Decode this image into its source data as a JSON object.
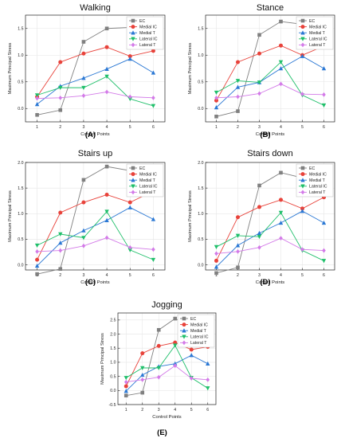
{
  "legend_series": [
    "EC",
    "Medial IC",
    "Medial T",
    "Lateral IC",
    "Lateral T"
  ],
  "series_colors": [
    "#808080",
    "#e8423a",
    "#2b78d4",
    "#1fbf6a",
    "#d37ae8"
  ],
  "series_markers": [
    "square",
    "circle",
    "triangle-up",
    "triangle-down",
    "diamond"
  ],
  "chart_data": [
    {
      "type": "line",
      "panel_label": "(A)",
      "title": "Walking",
      "xlabel": "Control Points",
      "ylabel": "Maximum Principal Stress",
      "x": [
        1,
        2,
        3,
        4,
        5,
        6
      ],
      "xlim": [
        0.5,
        6.5
      ],
      "ylim": [
        -0.25,
        1.75
      ],
      "yticks": [
        "0.0",
        "0.5",
        "1.0",
        "1.5"
      ],
      "xticks": [
        "1",
        "2",
        "3",
        "4",
        "5",
        "6"
      ],
      "legend_position": "top-right",
      "series": [
        {
          "name": "EC",
          "values": [
            -0.12,
            -0.03,
            1.25,
            1.5,
            1.52,
            1.15
          ]
        },
        {
          "name": "Medial IC",
          "values": [
            0.22,
            0.87,
            1.03,
            1.15,
            0.98,
            1.08
          ]
        },
        {
          "name": "Medial T",
          "values": [
            0.08,
            0.42,
            0.57,
            0.74,
            0.93,
            0.67
          ]
        },
        {
          "name": "Lateral IC",
          "values": [
            0.25,
            0.39,
            0.39,
            0.6,
            0.18,
            0.05
          ]
        },
        {
          "name": "Lateral T",
          "values": [
            0.19,
            0.2,
            0.24,
            0.31,
            0.22,
            0.2
          ]
        }
      ]
    },
    {
      "type": "line",
      "panel_label": "(B)",
      "title": "Stance",
      "xlabel": "Control Points",
      "ylabel": "Maximum Principal Stress",
      "x": [
        1,
        2,
        3,
        4,
        5,
        6
      ],
      "xlim": [
        0.5,
        6.5
      ],
      "ylim": [
        -0.25,
        1.75
      ],
      "yticks": [
        "0.0",
        "0.5",
        "1.0",
        "1.5"
      ],
      "xticks": [
        "1",
        "2",
        "3",
        "4",
        "5",
        "6"
      ],
      "legend_position": "top-right",
      "series": [
        {
          "name": "EC",
          "values": [
            -0.15,
            -0.05,
            1.38,
            1.63,
            1.58,
            1.2
          ]
        },
        {
          "name": "Medial IC",
          "values": [
            0.15,
            0.87,
            1.03,
            1.18,
            1.0,
            1.17
          ]
        },
        {
          "name": "Medial T",
          "values": [
            0.02,
            0.4,
            0.49,
            0.75,
            0.98,
            0.75
          ]
        },
        {
          "name": "Lateral IC",
          "values": [
            0.3,
            0.52,
            0.49,
            0.87,
            0.25,
            0.06
          ]
        },
        {
          "name": "Lateral T",
          "values": [
            0.2,
            0.22,
            0.28,
            0.46,
            0.27,
            0.26
          ]
        }
      ]
    },
    {
      "type": "line",
      "panel_label": "(C)",
      "title": "Stairs up",
      "xlabel": "Control Points",
      "ylabel": "Maximum Principal Stress",
      "x": [
        1,
        2,
        3,
        4,
        5,
        6
      ],
      "xlim": [
        0.5,
        6.5
      ],
      "ylim": [
        -0.1,
        2.0
      ],
      "yticks": [
        "0.0",
        "0.5",
        "1.0",
        "1.5",
        "2.0"
      ],
      "xticks": [
        "1",
        "2",
        "3",
        "4",
        "5",
        "6"
      ],
      "legend_position": "top-right",
      "series": [
        {
          "name": "EC",
          "values": [
            -0.18,
            -0.08,
            1.66,
            1.92,
            1.84,
            1.43
          ]
        },
        {
          "name": "Medial IC",
          "values": [
            0.1,
            1.02,
            1.22,
            1.37,
            1.22,
            1.44
          ]
        },
        {
          "name": "Medial T",
          "values": [
            -0.02,
            0.43,
            0.67,
            0.87,
            1.12,
            0.89
          ]
        },
        {
          "name": "Lateral IC",
          "values": [
            0.38,
            0.6,
            0.53,
            1.04,
            0.29,
            0.1
          ]
        },
        {
          "name": "Lateral T",
          "values": [
            0.26,
            0.28,
            0.37,
            0.53,
            0.34,
            0.3
          ]
        }
      ]
    },
    {
      "type": "line",
      "panel_label": "(D)",
      "title": "Stairs down",
      "xlabel": "Control Points",
      "ylabel": "Maximum Principal Stress",
      "x": [
        1,
        2,
        3,
        4,
        5,
        6
      ],
      "xlim": [
        0.5,
        6.5
      ],
      "ylim": [
        -0.1,
        2.0
      ],
      "yticks": [
        "0.0",
        "0.5",
        "1.0",
        "1.5",
        "2.0"
      ],
      "xticks": [
        "1",
        "2",
        "3",
        "4",
        "5",
        "6"
      ],
      "legend_position": "top-right",
      "series": [
        {
          "name": "EC",
          "values": [
            -0.16,
            -0.05,
            1.55,
            1.8,
            1.7,
            1.34
          ]
        },
        {
          "name": "Medial IC",
          "values": [
            0.08,
            0.93,
            1.13,
            1.27,
            1.1,
            1.32
          ]
        },
        {
          "name": "Medial T",
          "values": [
            -0.04,
            0.38,
            0.62,
            0.82,
            1.05,
            0.82
          ]
        },
        {
          "name": "Lateral IC",
          "values": [
            0.35,
            0.57,
            0.55,
            1.02,
            0.28,
            0.08
          ]
        },
        {
          "name": "Lateral T",
          "values": [
            0.22,
            0.26,
            0.34,
            0.52,
            0.3,
            0.28
          ]
        }
      ]
    },
    {
      "type": "line",
      "panel_label": "(E)",
      "title": "Jogging",
      "xlabel": "Control Points",
      "ylabel": "Maximum Principal Stress",
      "x": [
        1,
        2,
        3,
        4,
        5,
        6
      ],
      "xlim": [
        0.5,
        6.5
      ],
      "ylim": [
        -0.5,
        2.75
      ],
      "yticks": [
        "-0.5",
        "0.0",
        "0.5",
        "1.0",
        "1.5",
        "2.0",
        "2.5"
      ],
      "xticks": [
        "1",
        "2",
        "3",
        "4",
        "5",
        "6"
      ],
      "legend_position": "top-right",
      "series": [
        {
          "name": "EC",
          "values": [
            -0.18,
            -0.08,
            2.15,
            2.55,
            2.25,
            1.6
          ]
        },
        {
          "name": "Medial IC",
          "values": [
            0.15,
            1.32,
            1.58,
            1.7,
            1.45,
            1.55
          ]
        },
        {
          "name": "Medial T",
          "values": [
            -0.02,
            0.55,
            0.85,
            0.95,
            1.25,
            0.95
          ]
        },
        {
          "name": "Lateral IC",
          "values": [
            0.45,
            0.8,
            0.8,
            1.6,
            0.45,
            0.08
          ]
        },
        {
          "name": "Lateral T",
          "values": [
            0.3,
            0.38,
            0.47,
            0.88,
            0.43,
            0.38
          ]
        }
      ]
    }
  ]
}
